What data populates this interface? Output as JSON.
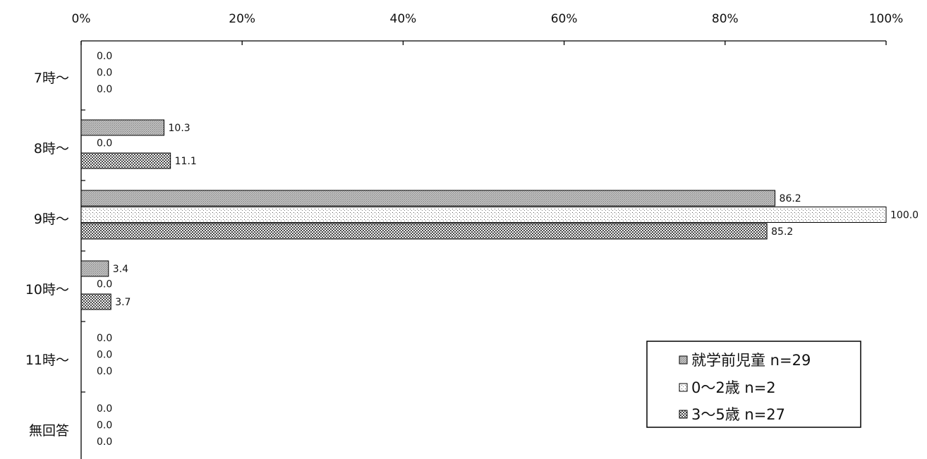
{
  "chart_data": {
    "type": "bar",
    "orientation": "horizontal",
    "title": "",
    "xlabel": "",
    "ylabel": "",
    "xlim": [
      0,
      100
    ],
    "x_ticks": [
      "0%",
      "20%",
      "40%",
      "60%",
      "80%",
      "100%"
    ],
    "x_axis_position": "top",
    "grid": false,
    "categories": [
      "7時～",
      "8時～",
      "9時～",
      "10時～",
      "11時～",
      "無回答"
    ],
    "series": [
      {
        "name": "就学前児童 n=29",
        "values": [
          0.0,
          10.3,
          86.2,
          3.4,
          0.0,
          0.0
        ],
        "labels": [
          "0.0",
          "10.3",
          "86.2",
          "3.4",
          "0.0",
          "0.0"
        ],
        "color": "#b4b4b4",
        "pattern": "dense-gray"
      },
      {
        "name": "0～2歳 n=2",
        "values": [
          0.0,
          0.0,
          100.0,
          0.0,
          0.0,
          0.0
        ],
        "labels": [
          "0.0",
          "0.0",
          "100.0",
          "0.0",
          "0.0",
          "0.0"
        ],
        "color": "#ffffff",
        "pattern": "sparse-dots"
      },
      {
        "name": "3～5歳 n=27",
        "values": [
          0.0,
          11.1,
          85.2,
          3.7,
          0.0,
          0.0
        ],
        "labels": [
          "0.0",
          "11.1",
          "85.2",
          "3.7",
          "0.0",
          "0.0"
        ],
        "color": "#8a8a8a",
        "pattern": "checker"
      }
    ],
    "legend_position": "bottom-right"
  }
}
